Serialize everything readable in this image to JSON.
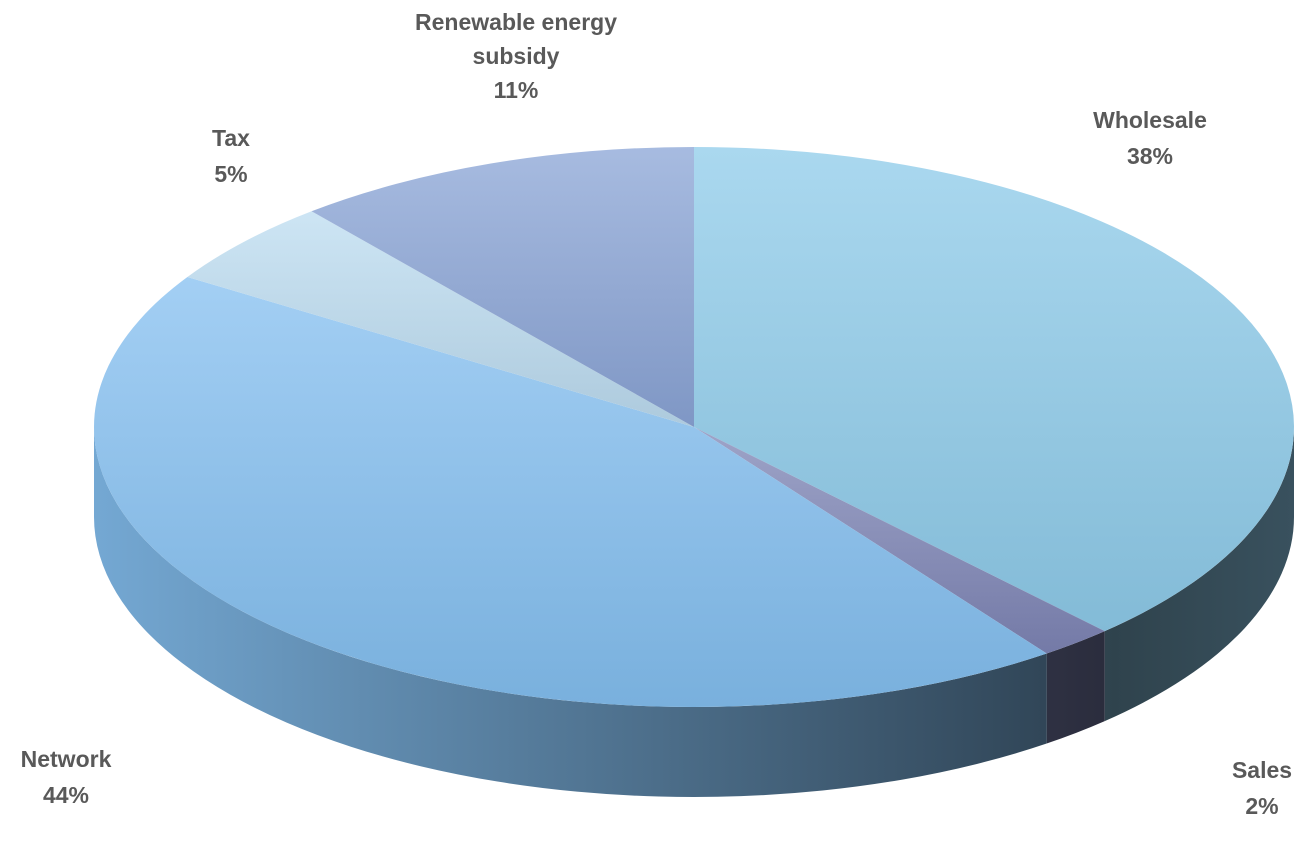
{
  "chart_data": {
    "type": "pie",
    "title": "",
    "slices": [
      {
        "label": "Wholesale",
        "value": 38,
        "value_label": "38%",
        "color": "#8ecbea"
      },
      {
        "label": "Sales",
        "value": 2,
        "value_label": "2%",
        "color": "#7e85b6"
      },
      {
        "label": "Network",
        "value": 44,
        "value_label": "44%",
        "color": "#84bff0"
      },
      {
        "label": "Tax",
        "value": 5,
        "value_label": "5%",
        "color": "#bcdcf0"
      },
      {
        "label": "Renewable energy subsidy",
        "value": 11,
        "value_label": "11%",
        "color": "#8aa4d6"
      }
    ],
    "legend": "none",
    "style": "3d-exploded-none"
  }
}
